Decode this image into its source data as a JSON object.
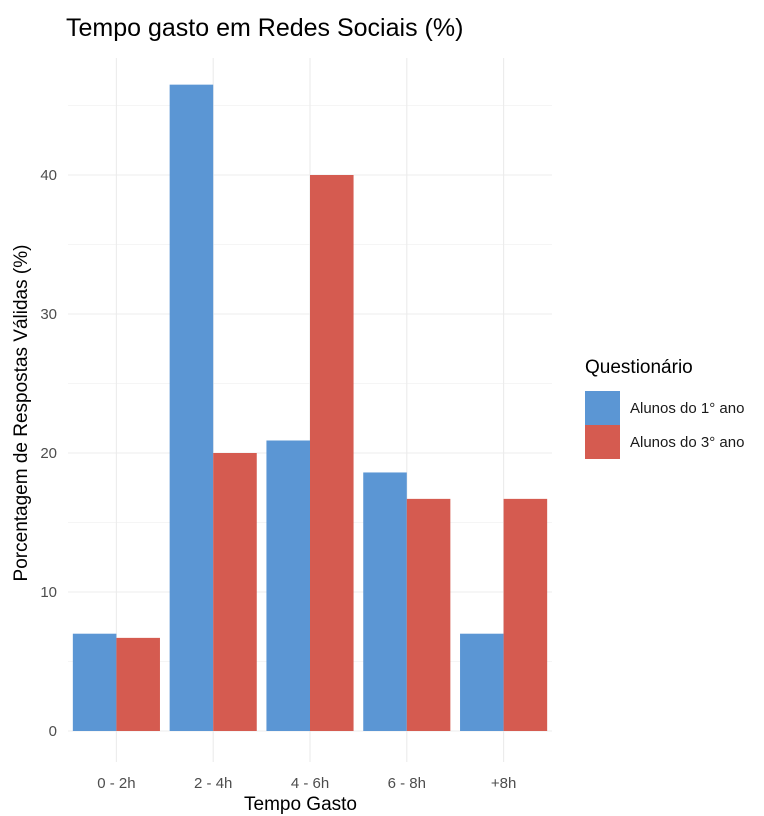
{
  "chart_data": {
    "type": "bar",
    "title": "Tempo gasto em Redes Sociais (%)",
    "xlabel": "Tempo Gasto",
    "ylabel": "Porcentagem de Respostas Válidas (%)",
    "categories": [
      "0 - 2h",
      "2 - 4h",
      "4 - 6h",
      "6 - 8h",
      "+8h"
    ],
    "series": [
      {
        "name": "Alunos do 1° ano",
        "values": [
          7.0,
          46.5,
          20.9,
          18.6,
          7.0
        ],
        "color": "#5b96d4"
      },
      {
        "name": "Alunos do 3° ano",
        "values": [
          6.7,
          20.0,
          40.0,
          16.7,
          16.7
        ],
        "color": "#d55b50"
      }
    ],
    "ylim": [
      0,
      48
    ],
    "yticks": [
      0,
      10,
      20,
      30,
      40
    ],
    "ytick_labels": [
      "0",
      "10",
      "20",
      "30",
      "40"
    ],
    "grid": true,
    "legend_title": "Questionário",
    "legend_position": "right"
  }
}
